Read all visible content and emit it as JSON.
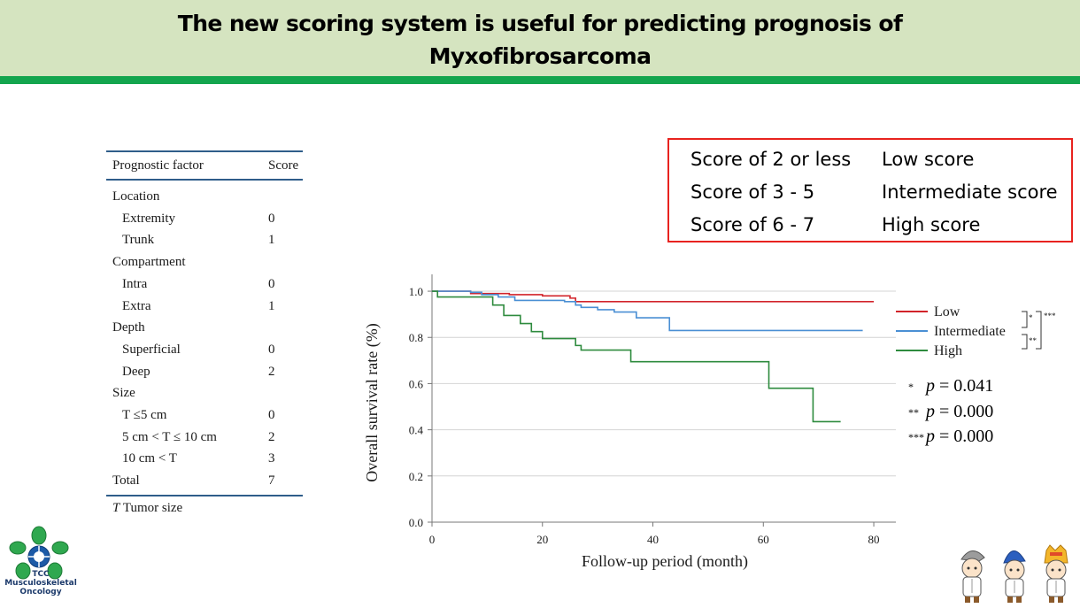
{
  "header": {
    "title_line1": "The new scoring system is useful for predicting prognosis of",
    "title_line2": "Myxofibrosarcoma",
    "bg_color": "#d5e4c0",
    "bar_color": "#14a54e"
  },
  "factor_table": {
    "col_factor": "Prognostic factor",
    "col_score": "Score",
    "rows": [
      {
        "label": "Location",
        "score": "",
        "indent": false
      },
      {
        "label": "Extremity",
        "score": "0",
        "indent": true
      },
      {
        "label": "Trunk",
        "score": "1",
        "indent": true
      },
      {
        "label": "Compartment",
        "score": "",
        "indent": false
      },
      {
        "label": "Intra",
        "score": "0",
        "indent": true
      },
      {
        "label": "Extra",
        "score": "1",
        "indent": true
      },
      {
        "label": "Depth",
        "score": "",
        "indent": false
      },
      {
        "label": "Superficial",
        "score": "0",
        "indent": true
      },
      {
        "label": "Deep",
        "score": "2",
        "indent": true
      },
      {
        "label": "Size",
        "score": "",
        "indent": false
      },
      {
        "label": "T ≤5 cm",
        "score": "0",
        "indent": true
      },
      {
        "label": "5 cm < T ≤ 10 cm",
        "score": "2",
        "indent": true
      },
      {
        "label": "10 cm < T",
        "score": "3",
        "indent": true
      },
      {
        "label": "Total",
        "score": "7",
        "indent": false
      }
    ],
    "footnote_symbol": "T",
    "footnote_text": " Tumor size"
  },
  "score_categories": [
    {
      "range": "Score of 2 or less",
      "category": "Low score"
    },
    {
      "range": "Score of 3 - 5",
      "category": "Intermediate score"
    },
    {
      "range": "Score of 6 - 7",
      "category": "High score"
    }
  ],
  "chart_data": {
    "type": "line",
    "xlabel": "Follow-up period (month)",
    "ylabel": "Overall survival rate (%)",
    "xlim": [
      0,
      84
    ],
    "ylim": [
      0,
      1.05
    ],
    "xticks": [
      "0",
      "20",
      "40",
      "60",
      "80"
    ],
    "yticks": [
      "0.0",
      "0.2",
      "0.4",
      "0.6",
      "0.8",
      "1.0"
    ],
    "grid": "horizontal",
    "legend_position": "right",
    "series": [
      {
        "name": "Low",
        "color": "#d2232a",
        "x": [
          0,
          7,
          14,
          20,
          25,
          26,
          80
        ],
        "y": [
          1.0,
          0.99,
          0.985,
          0.98,
          0.97,
          0.955,
          0.955
        ]
      },
      {
        "name": "Intermediate",
        "color": "#4a8fd4",
        "x": [
          0,
          7,
          9,
          12,
          15,
          24,
          26,
          27,
          30,
          33,
          37,
          43,
          78
        ],
        "y": [
          1.0,
          0.995,
          0.985,
          0.975,
          0.96,
          0.955,
          0.94,
          0.93,
          0.92,
          0.91,
          0.885,
          0.83,
          0.83
        ]
      },
      {
        "name": "High",
        "color": "#2e8b3e",
        "x": [
          0,
          1,
          11,
          13,
          16,
          18,
          20,
          26,
          27,
          36,
          61,
          69,
          74
        ],
        "y": [
          1.0,
          0.975,
          0.94,
          0.895,
          0.86,
          0.825,
          0.795,
          0.765,
          0.745,
          0.695,
          0.58,
          0.435,
          0.435
        ]
      }
    ],
    "comparison_stars": [
      "*",
      "**",
      "***"
    ]
  },
  "pvalues": [
    {
      "stars": "*",
      "p": "p",
      "text": " = 0.041"
    },
    {
      "stars": "**",
      "p": "p",
      "text": " = 0.000"
    },
    {
      "stars": "***",
      "p": "p",
      "text": " = 0.000"
    }
  ],
  "logo": {
    "line1": "TCC",
    "line2": "Musculoskeletal",
    "line3": "Oncology"
  }
}
